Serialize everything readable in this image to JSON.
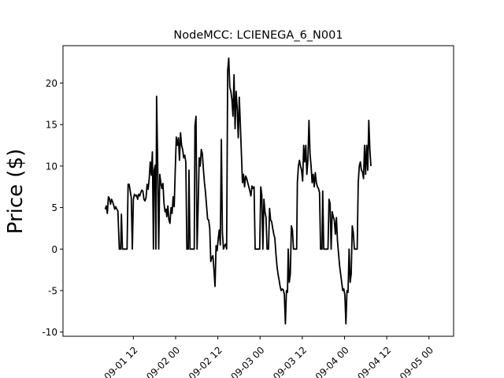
{
  "chart_data": {
    "type": "line",
    "title": "NodeMCC: LCIENEGA_6_N001",
    "xlabel": "",
    "ylabel": "Price ($)",
    "x_unit": "hours",
    "xlim": [
      -8,
      103
    ],
    "ylim": [
      -10.5,
      24.5
    ],
    "yticks": [
      -10,
      -5,
      0,
      5,
      10,
      15,
      20
    ],
    "xticks": [
      {
        "value": 12,
        "label": "09-01 12"
      },
      {
        "value": 24,
        "label": "09-02 00"
      },
      {
        "value": 36,
        "label": "09-02 12"
      },
      {
        "value": 48,
        "label": "09-03 00"
      },
      {
        "value": 60,
        "label": "09-03 12"
      },
      {
        "value": 72,
        "label": "09-04 00"
      },
      {
        "value": 84,
        "label": "09-04 12"
      },
      {
        "value": 96,
        "label": "09-05 00"
      }
    ],
    "grid": false,
    "legend": "none",
    "series": [
      {
        "color": "#000000",
        "points": [
          [
            4.0,
            4.8
          ],
          [
            4.3,
            5.2
          ],
          [
            4.6,
            4.3
          ],
          [
            4.9,
            6.3
          ],
          [
            5.2,
            6.1
          ],
          [
            5.5,
            5.4
          ],
          [
            5.8,
            6.0
          ],
          [
            6.1,
            5.7
          ],
          [
            6.4,
            5.3
          ],
          [
            6.7,
            4.8
          ],
          [
            7.0,
            5.1
          ],
          [
            7.3,
            4.8
          ],
          [
            7.6,
            4.6
          ],
          [
            8.0,
            0
          ],
          [
            8.4,
            0
          ],
          [
            8.6,
            4.2
          ],
          [
            8.9,
            0
          ],
          [
            9.3,
            0
          ],
          [
            10.2,
            0
          ],
          [
            10.5,
            7.8
          ],
          [
            10.8,
            7.8
          ],
          [
            11.1,
            7.0
          ],
          [
            11.4,
            6.2
          ],
          [
            11.7,
            0
          ],
          [
            12.0,
            6.0
          ],
          [
            12.3,
            6.6
          ],
          [
            12.6,
            6.4
          ],
          [
            12.9,
            6.5
          ],
          [
            13.2,
            6.0
          ],
          [
            13.5,
            6.6
          ],
          [
            13.8,
            6.4
          ],
          [
            14.1,
            6.8
          ],
          [
            14.4,
            7.1
          ],
          [
            14.7,
            7.0
          ],
          [
            15.0,
            6.0
          ],
          [
            15.3,
            5.8
          ],
          [
            15.6,
            6.2
          ],
          [
            15.9,
            7.8
          ],
          [
            16.2,
            7.2
          ],
          [
            16.5,
            8.5
          ],
          [
            16.8,
            10.5
          ],
          [
            17.1,
            8.9
          ],
          [
            17.4,
            11.7
          ],
          [
            17.7,
            0
          ],
          [
            17.9,
            9.5
          ],
          [
            18.2,
            10.1
          ],
          [
            18.4,
            0
          ],
          [
            18.6,
            18.4
          ],
          [
            18.9,
            10.5
          ],
          [
            19.2,
            0
          ],
          [
            19.5,
            9.0
          ],
          [
            19.8,
            8.0
          ],
          [
            20.1,
            7.3
          ],
          [
            20.4,
            7.9
          ],
          [
            20.7,
            5.5
          ],
          [
            21.0,
            4.5
          ],
          [
            21.3,
            4.8
          ],
          [
            21.5,
            3.9
          ],
          [
            21.8,
            5.2
          ],
          [
            22.1,
            3.5
          ],
          [
            22.4,
            3.1
          ],
          [
            22.7,
            5.0
          ],
          [
            23.0,
            4.3
          ],
          [
            23.3,
            6.3
          ],
          [
            23.6,
            5.1
          ],
          [
            23.9,
            9.5
          ],
          [
            24.2,
            13.5
          ],
          [
            24.5,
            12.5
          ],
          [
            24.8,
            13.4
          ],
          [
            25.1,
            10.7
          ],
          [
            25.4,
            14.0
          ],
          [
            25.7,
            12.5
          ],
          [
            26.0,
            12.0
          ],
          [
            26.3,
            11.0
          ],
          [
            26.6,
            11.3
          ],
          [
            26.9,
            10.5
          ],
          [
            27.2,
            0
          ],
          [
            27.6,
            0
          ],
          [
            27.8,
            9.5
          ],
          [
            28.1,
            0
          ],
          [
            28.5,
            0
          ],
          [
            29.3,
            0
          ],
          [
            29.5,
            14.8
          ],
          [
            29.8,
            16.0
          ],
          [
            30.1,
            0
          ],
          [
            30.4,
            5.0
          ],
          [
            30.7,
            11.0
          ],
          [
            31.0,
            10.0
          ],
          [
            31.3,
            12.0
          ],
          [
            31.6,
            11.5
          ],
          [
            31.9,
            9.6
          ],
          [
            32.2,
            8.0
          ],
          [
            32.5,
            6.8
          ],
          [
            32.8,
            5.2
          ],
          [
            33.1,
            3.6
          ],
          [
            33.4,
            3.5
          ],
          [
            33.7,
            2.5
          ],
          [
            34.0,
            -1.5
          ],
          [
            34.3,
            -1.0
          ],
          [
            34.6,
            -0.8
          ],
          [
            34.9,
            -2.5
          ],
          [
            35.2,
            -4.5
          ],
          [
            35.5,
            0.4
          ],
          [
            35.8,
            -0.2
          ],
          [
            36.1,
            1.2
          ],
          [
            36.4,
            2.3
          ],
          [
            36.7,
            0.5
          ],
          [
            37.0,
            13.2
          ],
          [
            37.3,
            2.0
          ],
          [
            37.6,
            0
          ],
          [
            37.9,
            0.4
          ],
          [
            38.2,
            0.6
          ],
          [
            38.5,
            0
          ],
          [
            38.8,
            21.5
          ],
          [
            39.1,
            23.0
          ],
          [
            39.4,
            19.5
          ],
          [
            39.7,
            19.0
          ],
          [
            40.0,
            18.0
          ],
          [
            40.3,
            16.0
          ],
          [
            40.6,
            21.0
          ],
          [
            40.9,
            14.5
          ],
          [
            41.2,
            19.0
          ],
          [
            41.5,
            17.0
          ],
          [
            41.8,
            13.4
          ],
          [
            42.1,
            18.3
          ],
          [
            42.4,
            15.0
          ],
          [
            42.7,
            11.5
          ],
          [
            43.0,
            8.0
          ],
          [
            43.3,
            9.0
          ],
          [
            43.6,
            7.5
          ],
          [
            43.9,
            8.8
          ],
          [
            44.2,
            8.5
          ],
          [
            44.5,
            8.0
          ],
          [
            44.8,
            7.5
          ],
          [
            45.1,
            7.0
          ],
          [
            45.4,
            6.4
          ],
          [
            45.7,
            7.6
          ],
          [
            46.0,
            7.3
          ],
          [
            46.3,
            7.5
          ],
          [
            46.6,
            0
          ],
          [
            47.0,
            0
          ],
          [
            47.9,
            0
          ],
          [
            48.2,
            7.5
          ],
          [
            48.5,
            6.5
          ],
          [
            48.8,
            0
          ],
          [
            49.1,
            6.0
          ],
          [
            49.4,
            4.5
          ],
          [
            49.7,
            3.8
          ],
          [
            50.0,
            0
          ],
          [
            50.4,
            0
          ],
          [
            50.7,
            4.9
          ],
          [
            51.0,
            3.5
          ],
          [
            51.3,
            3.3
          ],
          [
            51.6,
            2.5
          ],
          [
            51.9,
            1.8
          ],
          [
            52.2,
            1.3
          ],
          [
            52.5,
            -0.5
          ],
          [
            52.8,
            -2.0
          ],
          [
            53.1,
            -3.0
          ],
          [
            53.4,
            -3.7
          ],
          [
            53.7,
            -4.5
          ],
          [
            54.0,
            -5.0
          ],
          [
            54.3,
            -4.8
          ],
          [
            54.6,
            -4.9
          ],
          [
            54.9,
            -5.5
          ],
          [
            55.2,
            -9.0
          ],
          [
            55.5,
            -5.0
          ],
          [
            55.8,
            -5.2
          ],
          [
            56.0,
            0.0
          ],
          [
            56.3,
            -4.0
          ],
          [
            56.6,
            -3.0
          ],
          [
            56.9,
            2.8
          ],
          [
            57.2,
            2.3
          ],
          [
            57.5,
            0
          ],
          [
            58.4,
            0
          ],
          [
            58.6,
            8.0
          ],
          [
            58.9,
            10.0
          ],
          [
            59.2,
            10.7
          ],
          [
            59.5,
            10.0
          ],
          [
            59.8,
            9.5
          ],
          [
            60.1,
            8.2
          ],
          [
            60.4,
            12.5
          ],
          [
            60.7,
            10.5
          ],
          [
            61.0,
            12.5
          ],
          [
            61.3,
            9.0
          ],
          [
            61.6,
            10.8
          ],
          [
            61.9,
            15.5
          ],
          [
            62.2,
            11.5
          ],
          [
            62.5,
            10.0
          ],
          [
            62.8,
            8.0
          ],
          [
            63.1,
            9.0
          ],
          [
            63.4,
            7.5
          ],
          [
            63.7,
            9.2
          ],
          [
            64.0,
            8.0
          ],
          [
            64.3,
            7.5
          ],
          [
            64.6,
            7.3
          ],
          [
            64.9,
            6.8
          ],
          [
            65.2,
            0
          ],
          [
            65.6,
            0
          ],
          [
            65.8,
            7.0
          ],
          [
            66.1,
            0
          ],
          [
            66.5,
            0
          ],
          [
            67.3,
            0
          ],
          [
            67.6,
            6.0
          ],
          [
            67.9,
            5.5
          ],
          [
            68.2,
            0
          ],
          [
            68.5,
            4.5
          ],
          [
            68.8,
            3.9
          ],
          [
            69.1,
            3.5
          ],
          [
            69.4,
            1.8
          ],
          [
            69.7,
            3.8
          ],
          [
            70.0,
            1.0
          ],
          [
            70.3,
            -0.5
          ],
          [
            70.6,
            -2.0
          ],
          [
            70.9,
            -3.0
          ],
          [
            71.2,
            -4.0
          ],
          [
            71.5,
            -5.0
          ],
          [
            71.8,
            -4.8
          ],
          [
            72.1,
            -5.5
          ],
          [
            72.4,
            -9.0
          ],
          [
            72.7,
            -5.0
          ],
          [
            73.0,
            -5.2
          ],
          [
            73.3,
            0.0
          ],
          [
            73.6,
            -4.0
          ],
          [
            73.9,
            -3.0
          ],
          [
            74.2,
            2.8
          ],
          [
            74.5,
            2.0
          ],
          [
            74.8,
            0
          ],
          [
            75.6,
            0
          ],
          [
            75.9,
            8.0
          ],
          [
            76.2,
            10.0
          ],
          [
            76.5,
            10.5
          ],
          [
            76.8,
            9.5
          ],
          [
            77.1,
            9.3
          ],
          [
            77.4,
            8.5
          ],
          [
            77.7,
            12.5
          ],
          [
            78.0,
            9.0
          ],
          [
            78.3,
            12.5
          ],
          [
            78.6,
            9.5
          ],
          [
            78.9,
            15.5
          ],
          [
            79.2,
            12.0
          ],
          [
            79.5,
            10.0
          ]
        ]
      }
    ]
  }
}
